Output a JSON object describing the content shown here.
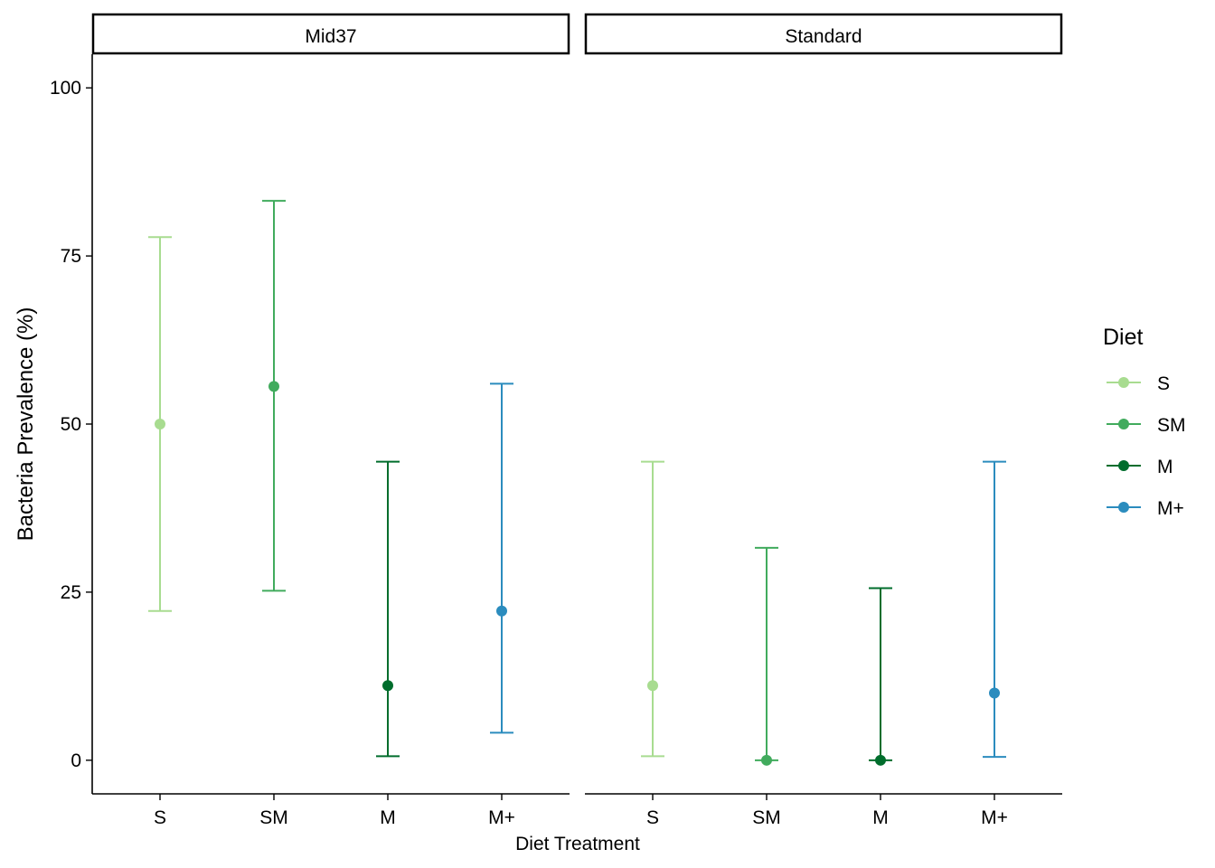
{
  "chart_data": {
    "type": "errorbar",
    "xlabel": "Diet Treatment",
    "ylabel": "Bacteria Prevalence (%)",
    "ylim": [
      -5,
      105
    ],
    "yticks": [
      0,
      25,
      50,
      75,
      100
    ],
    "categories": [
      "S",
      "SM",
      "M",
      "M+"
    ],
    "legend": {
      "title": "Diet",
      "placement": "right",
      "entries": [
        "S",
        "SM",
        "M",
        "M+"
      ]
    },
    "colors": {
      "S": "#a8dc90",
      "SM": "#41ab5d",
      "M": "#006d2c",
      "M+": "#2b8cbe"
    },
    "panels": [
      {
        "title": "Mid37",
        "points": [
          {
            "category": "S",
            "y": 50,
            "low": 22.2,
            "high": 77.8
          },
          {
            "category": "SM",
            "y": 55.6,
            "low": 25.2,
            "high": 83.2
          },
          {
            "category": "M",
            "y": 11.1,
            "low": 0.6,
            "high": 44.4
          },
          {
            "category": "M+",
            "y": 22.2,
            "low": 4.1,
            "high": 56.0
          }
        ]
      },
      {
        "title": "Standard",
        "points": [
          {
            "category": "S",
            "y": 11.1,
            "low": 0.6,
            "high": 44.4
          },
          {
            "category": "SM",
            "y": 0,
            "low": 0,
            "high": 31.6
          },
          {
            "category": "M",
            "y": 0,
            "low": 0,
            "high": 25.6
          },
          {
            "category": "M+",
            "y": 10.0,
            "low": 0.5,
            "high": 44.4
          }
        ]
      }
    ]
  }
}
